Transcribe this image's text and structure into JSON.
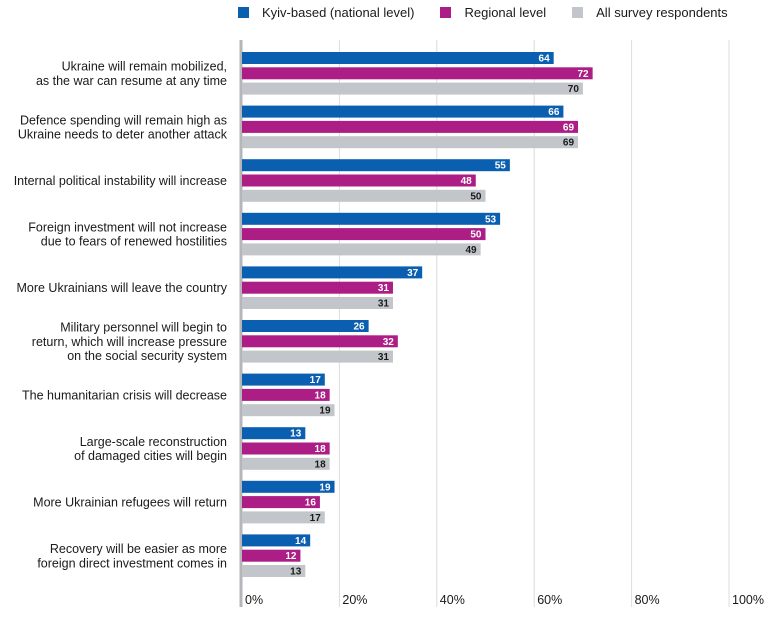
{
  "chart_data": {
    "type": "bar",
    "orientation": "horizontal",
    "categories": [
      [
        "Ukraine will remain mobilized,",
        "as the war can resume at any time"
      ],
      [
        "Defence spending will remain high as",
        "Ukraine needs to deter another attack"
      ],
      [
        "Internal political instability will increase"
      ],
      [
        "Foreign investment will not increase",
        "due to fears of renewed hostilities"
      ],
      [
        "More Ukrainians will leave the country"
      ],
      [
        "Military personnel will begin to",
        "return, which will increase pressure",
        "on the social security system"
      ],
      [
        "The humanitarian crisis will decrease"
      ],
      [
        "Large-scale reconstruction",
        "of damaged cities will begin"
      ],
      [
        "More Ukrainian refugees will return"
      ],
      [
        "Recovery will be easier as more",
        "foreign direct investment comes in"
      ]
    ],
    "series": [
      {
        "name": "Kyiv-based (national level)",
        "color": "#0a5fb0",
        "label_color": "#ffffff",
        "values": [
          64,
          66,
          55,
          53,
          37,
          26,
          17,
          13,
          19,
          14
        ]
      },
      {
        "name": "Regional level",
        "color": "#ac1e85",
        "label_color": "#ffffff",
        "values": [
          72,
          69,
          48,
          50,
          31,
          32,
          18,
          18,
          16,
          12
        ]
      },
      {
        "name": "All survey respondents",
        "color": "#c2c5ca",
        "label_color": "#1a1a1a",
        "values": [
          70,
          69,
          50,
          49,
          31,
          31,
          19,
          18,
          17,
          13
        ]
      }
    ],
    "xlim": [
      0,
      100
    ],
    "x_ticks": [
      "0%",
      "20%",
      "40%",
      "60%",
      "80%",
      "100%"
    ],
    "grid": true,
    "legend_position": "top"
  }
}
